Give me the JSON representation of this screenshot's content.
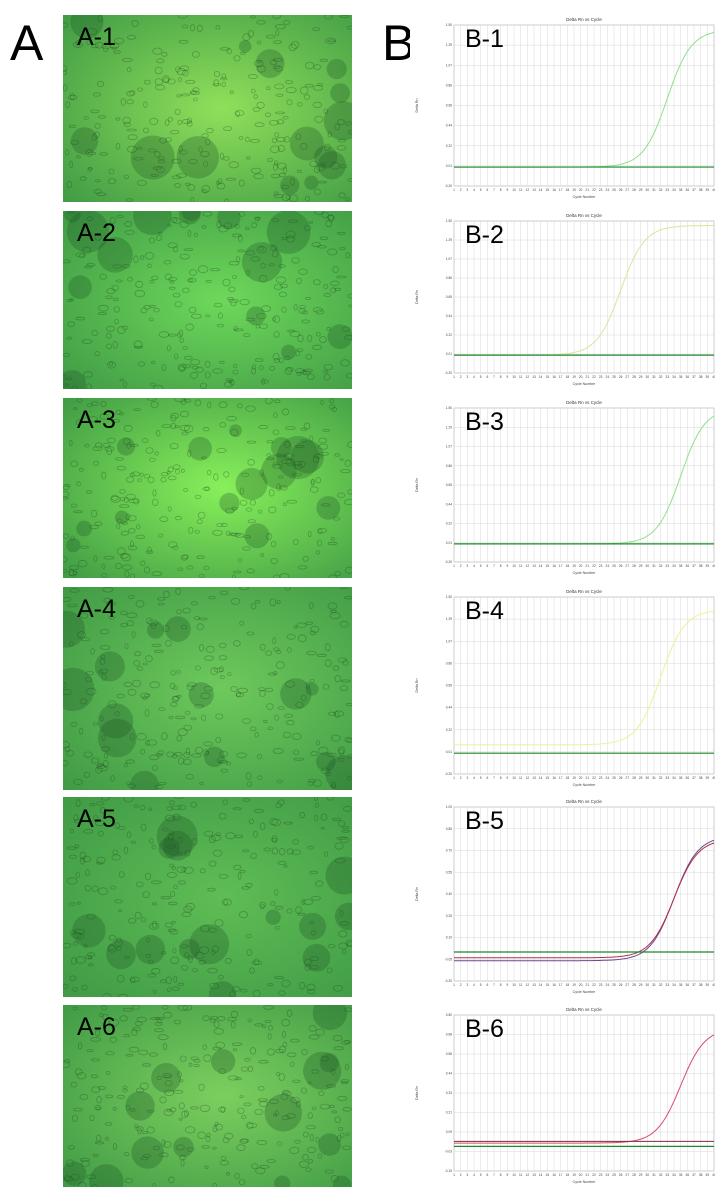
{
  "figure": {
    "panel_a_letter": "A",
    "panel_b_letter": "B"
  },
  "micrographs": [
    {
      "label": "A-1",
      "color": "#8fe05a"
    },
    {
      "label": "A-2",
      "color": "#6ed85a"
    },
    {
      "label": "A-3",
      "color": "#88f05a"
    },
    {
      "label": "A-4",
      "color": "#6ec95c"
    },
    {
      "label": "A-5",
      "color": "#5fbd55"
    },
    {
      "label": "A-6",
      "color": "#7ccf5e"
    }
  ],
  "chart_data": [
    {
      "type": "line",
      "panel_label": "B-1",
      "title": "Delta Rn vs Cycle",
      "xlabel": "Cycle Number",
      "ylabel": "Delta Rn",
      "x": [
        1,
        2,
        3,
        4,
        5,
        6,
        7,
        8,
        9,
        10,
        11,
        12,
        13,
        14,
        15,
        16,
        17,
        18,
        19,
        20,
        21,
        22,
        23,
        24,
        25,
        26,
        27,
        28,
        29,
        30,
        31,
        32,
        33,
        34,
        35,
        36,
        37,
        38,
        39,
        40
      ],
      "xlim": [
        1,
        40
      ],
      "ylim": [
        -0.2,
        1.5
      ],
      "threshold": 0.0,
      "series": [
        {
          "color": "#8ee08c",
          "ct": 33,
          "plateau": 1.45,
          "start": 0.0
        }
      ],
      "threshold_color": "#1a8a2a"
    },
    {
      "type": "line",
      "panel_label": "B-2",
      "title": "Delta Rn vs Cycle",
      "xlabel": "Cycle Number",
      "ylabel": "Delta Rn",
      "x": [
        1,
        2,
        3,
        4,
        5,
        6,
        7,
        8,
        9,
        10,
        11,
        12,
        13,
        14,
        15,
        16,
        17,
        18,
        19,
        20,
        21,
        22,
        23,
        24,
        25,
        26,
        27,
        28,
        29,
        30,
        31,
        32,
        33,
        34,
        35,
        36,
        37,
        38,
        39,
        40
      ],
      "xlim": [
        1,
        40
      ],
      "ylim": [
        -0.2,
        1.5
      ],
      "threshold": 0.0,
      "series": [
        {
          "color": "#d8e69a",
          "ct": 26,
          "plateau": 1.45,
          "start": 0.0
        }
      ],
      "threshold_color": "#1a8a2a"
    },
    {
      "type": "line",
      "panel_label": "B-3",
      "title": "Delta Rn vs Cycle",
      "xlabel": "Cycle Number",
      "ylabel": "Delta Rn",
      "x": [
        1,
        2,
        3,
        4,
        5,
        6,
        7,
        8,
        9,
        10,
        11,
        12,
        13,
        14,
        15,
        16,
        17,
        18,
        19,
        20,
        21,
        22,
        23,
        24,
        25,
        26,
        27,
        28,
        29,
        30,
        31,
        32,
        33,
        34,
        35,
        36,
        37,
        38,
        39,
        40
      ],
      "xlim": [
        1,
        40
      ],
      "ylim": [
        -0.2,
        1.5
      ],
      "threshold": 0.0,
      "series": [
        {
          "color": "#8ee08c",
          "ct": 35,
          "plateau": 1.5,
          "start": 0.0
        }
      ],
      "threshold_color": "#1a8a2a"
    },
    {
      "type": "line",
      "panel_label": "B-4",
      "title": "Delta Rn vs Cycle",
      "xlabel": "Cycle Number",
      "ylabel": "Delta Rn",
      "x": [
        1,
        2,
        3,
        4,
        5,
        6,
        7,
        8,
        9,
        10,
        11,
        12,
        13,
        14,
        15,
        16,
        17,
        18,
        19,
        20,
        21,
        22,
        23,
        24,
        25,
        26,
        27,
        28,
        29,
        30,
        31,
        32,
        33,
        34,
        35,
        36,
        37,
        38,
        39,
        40
      ],
      "xlim": [
        1,
        40
      ],
      "ylim": [
        -0.2,
        1.5
      ],
      "threshold": 0.0,
      "series": [
        {
          "color": "#f0ef98",
          "ct": 32,
          "plateau": 1.38,
          "start": 0.08
        }
      ],
      "threshold_color": "#1a8a2a"
    },
    {
      "type": "line",
      "panel_label": "B-5",
      "title": "Delta Rn vs Cycle",
      "xlabel": "Cycle Number",
      "ylabel": "Delta Rn",
      "x": [
        1,
        2,
        3,
        4,
        5,
        6,
        7,
        8,
        9,
        10,
        11,
        12,
        13,
        14,
        15,
        16,
        17,
        18,
        19,
        20,
        21,
        22,
        23,
        24,
        25,
        26,
        27,
        28,
        29,
        30,
        31,
        32,
        33,
        34,
        35,
        36,
        37,
        38,
        39,
        40
      ],
      "xlim": [
        1,
        40
      ],
      "ylim": [
        -0.2,
        1.0
      ],
      "threshold": 0.0,
      "series": [
        {
          "color": "#6a4a8a",
          "ct": 34,
          "plateau": 0.8,
          "start": -0.06
        },
        {
          "color": "#b03050",
          "ct": 34,
          "plateau": 0.78,
          "start": -0.04
        }
      ],
      "threshold_color": "#1a8a2a"
    },
    {
      "type": "line",
      "panel_label": "B-6",
      "title": "Delta Rn vs Cycle",
      "xlabel": "Cycle Number",
      "ylabel": "Delta Rn",
      "x": [
        1,
        2,
        3,
        4,
        5,
        6,
        7,
        8,
        9,
        10,
        11,
        12,
        13,
        14,
        15,
        16,
        17,
        18,
        19,
        20,
        21,
        22,
        23,
        24,
        25,
        26,
        27,
        28,
        29,
        30,
        31,
        32,
        33,
        34,
        35,
        36,
        37,
        38,
        39,
        40
      ],
      "xlim": [
        1,
        40
      ],
      "ylim": [
        -0.15,
        0.8
      ],
      "threshold": 0.0,
      "series": [
        {
          "color": "#d84a6a",
          "ct": 35,
          "plateau": 0.72,
          "start": 0.02
        },
        {
          "color": "#7a2a3a",
          "ct": 60,
          "plateau": 0.02,
          "start": 0.03
        }
      ],
      "threshold_color": "#1a8a2a"
    }
  ]
}
